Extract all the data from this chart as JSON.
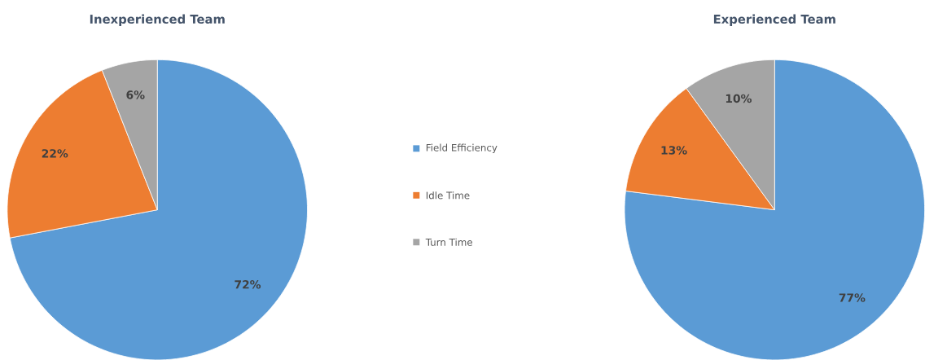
{
  "chart_data": [
    {
      "type": "pie",
      "title": "Inexperienced Team",
      "categories": [
        "Field Efficiency",
        "Idle Time",
        "Turn Time"
      ],
      "values": [
        72,
        22,
        6
      ],
      "value_labels": [
        "72%",
        "22%",
        "6%"
      ],
      "colors": [
        "#5b9bd5",
        "#ed7d31",
        "#a5a5a5"
      ],
      "legend": "right"
    },
    {
      "type": "pie",
      "title": "Experienced Team",
      "categories": [
        null,
        null,
        null
      ],
      "values": [
        77,
        13,
        10
      ],
      "value_labels": [
        "77%",
        "13%",
        "10%"
      ],
      "colors": [
        "#5b9bd5",
        "#ed7d31",
        "#a5a5a5"
      ]
    }
  ]
}
